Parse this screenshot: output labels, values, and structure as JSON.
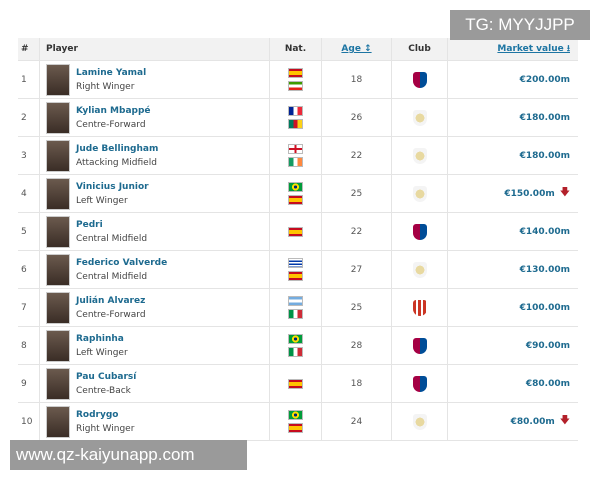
{
  "header": {
    "num": "#",
    "player": "Player",
    "nat": "Nat.",
    "age": "Age ↕",
    "club": "Club",
    "market_value": "Market value ⭳"
  },
  "rows": [
    {
      "num": "1",
      "name": "Lamine Yamal",
      "position": "Right Winger",
      "flags": [
        "spain",
        "equatorial-guinea"
      ],
      "age": "18",
      "club": "barcelona",
      "value": "€200.00m",
      "trend": ""
    },
    {
      "num": "2",
      "name": "Kylian Mbappé",
      "position": "Centre-Forward",
      "flags": [
        "france",
        "cameroon"
      ],
      "age": "26",
      "club": "real-madrid",
      "value": "€180.00m",
      "trend": ""
    },
    {
      "num": "3",
      "name": "Jude Bellingham",
      "position": "Attacking Midfield",
      "flags": [
        "england",
        "ireland"
      ],
      "age": "22",
      "club": "real-madrid",
      "value": "€180.00m",
      "trend": ""
    },
    {
      "num": "4",
      "name": "Vinicius Junior",
      "position": "Left Winger",
      "flags": [
        "brazil",
        "spain"
      ],
      "age": "25",
      "club": "real-madrid",
      "value": "€150.00m",
      "trend": "down"
    },
    {
      "num": "5",
      "name": "Pedri",
      "position": "Central Midfield",
      "flags": [
        "spain"
      ],
      "age": "22",
      "club": "barcelona",
      "value": "€140.00m",
      "trend": ""
    },
    {
      "num": "6",
      "name": "Federico Valverde",
      "position": "Central Midfield",
      "flags": [
        "uruguay",
        "spain"
      ],
      "age": "27",
      "club": "real-madrid",
      "value": "€130.00m",
      "trend": ""
    },
    {
      "num": "7",
      "name": "Julián Alvarez",
      "position": "Centre-Forward",
      "flags": [
        "argentina",
        "italy"
      ],
      "age": "25",
      "club": "atletico-madrid",
      "value": "€100.00m",
      "trend": ""
    },
    {
      "num": "8",
      "name": "Raphinha",
      "position": "Left Winger",
      "flags": [
        "brazil",
        "italy"
      ],
      "age": "28",
      "club": "barcelona",
      "value": "€90.00m",
      "trend": ""
    },
    {
      "num": "9",
      "name": "Pau Cubarsí",
      "position": "Centre-Back",
      "flags": [
        "spain"
      ],
      "age": "18",
      "club": "barcelona",
      "value": "€80.00m",
      "trend": ""
    },
    {
      "num": "10",
      "name": "Rodrygo",
      "position": "Right Winger",
      "flags": [
        "brazil",
        "spain"
      ],
      "age": "24",
      "club": "real-madrid",
      "value": "€80.00m",
      "trend": "down"
    }
  ],
  "watermarks": {
    "top": "TG: MYYJJPP",
    "bottom": "www.qz-kaiyunapp.com"
  },
  "colors": {
    "link": "#1d6a8f",
    "down_arrow": "#b3202a"
  }
}
